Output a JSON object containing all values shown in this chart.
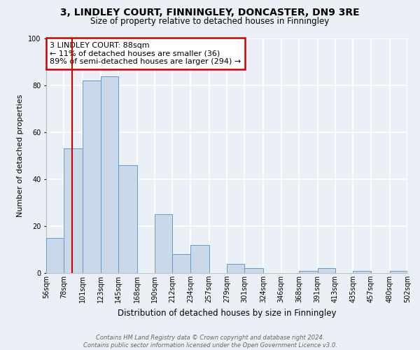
{
  "title": "3, LINDLEY COURT, FINNINGLEY, DONCASTER, DN9 3RE",
  "subtitle": "Size of property relative to detached houses in Finningley",
  "xlabel": "Distribution of detached houses by size in Finningley",
  "ylabel": "Number of detached properties",
  "bin_edges": [
    56,
    78,
    101,
    123,
    145,
    168,
    190,
    212,
    234,
    257,
    279,
    301,
    324,
    346,
    368,
    391,
    413,
    435,
    457,
    480,
    502
  ],
  "bin_labels": [
    "56sqm",
    "78sqm",
    "101sqm",
    "123sqm",
    "145sqm",
    "168sqm",
    "190sqm",
    "212sqm",
    "234sqm",
    "257sqm",
    "279sqm",
    "301sqm",
    "324sqm",
    "346sqm",
    "368sqm",
    "391sqm",
    "413sqm",
    "435sqm",
    "457sqm",
    "480sqm",
    "502sqm"
  ],
  "values": [
    15,
    53,
    82,
    84,
    46,
    0,
    25,
    8,
    12,
    0,
    4,
    2,
    0,
    0,
    1,
    2,
    0,
    1,
    0,
    1
  ],
  "ylim": [
    0,
    100
  ],
  "yticks": [
    0,
    20,
    40,
    60,
    80,
    100
  ],
  "bar_face_color": "#c9d9ea",
  "bar_edge_color": "#6699cc",
  "bg_color": "#eaf0f6",
  "grid_color": "#ffffff",
  "vline_x": 88,
  "vline_color": "#cc0000",
  "annotation_line1": "3 LINDLEY COURT: 88sqm",
  "annotation_line2": "← 11% of detached houses are smaller (36)",
  "annotation_line3": "89% of semi-detached houses are larger (294) →",
  "annotation_box_color": "#cc0000",
  "footer_line1": "Contains HM Land Registry data © Crown copyright and database right 2024.",
  "footer_line2": "Contains public sector information licensed under the Open Government Licence v3.0.",
  "title_fontsize": 10,
  "subtitle_fontsize": 8.5,
  "xlabel_fontsize": 8.5,
  "ylabel_fontsize": 8,
  "tick_fontsize": 7,
  "annot_fontsize": 8,
  "footer_fontsize": 6
}
